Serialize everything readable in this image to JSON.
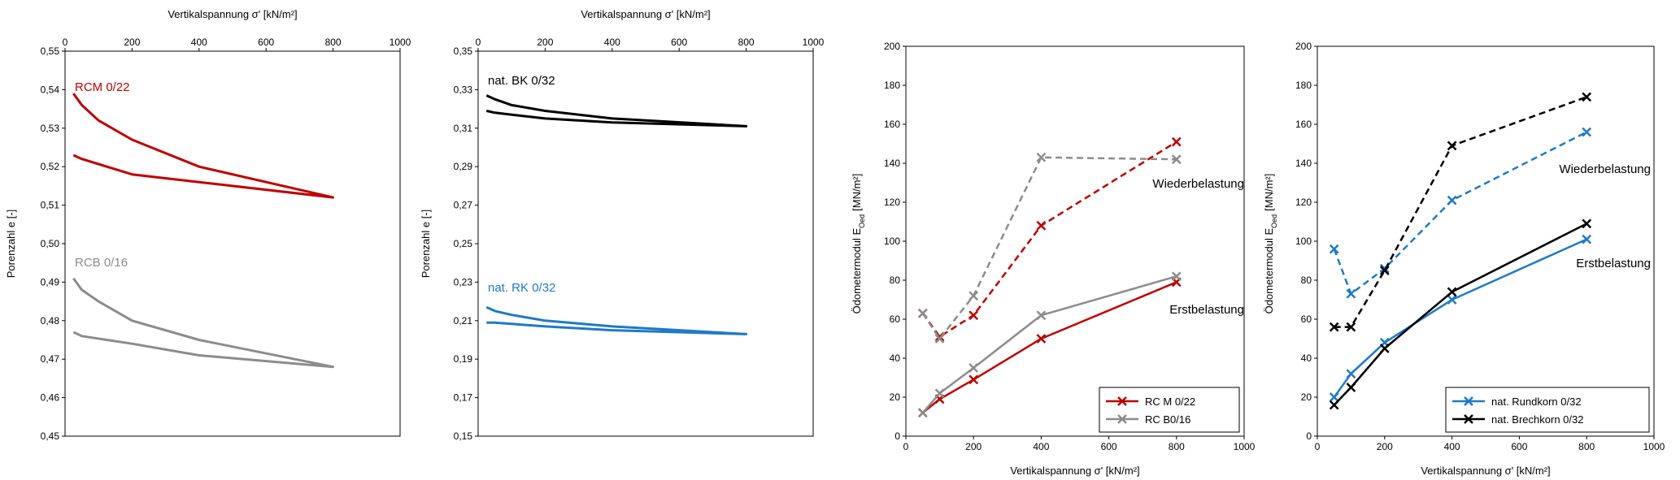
{
  "chart_data": [
    {
      "type": "line",
      "xlabel": "Vertikalspannung σ' [kN/m²]",
      "ylabel": "Porenzahl e [-]",
      "xlim": [
        0,
        1000
      ],
      "ylim": [
        0.45,
        0.55
      ],
      "x_ticks": [
        "0",
        "200",
        "400",
        "600",
        "800",
        "1000"
      ],
      "y_ticks": [
        "0,45",
        "0,46",
        "0,47",
        "0,48",
        "0,49",
        "0,50",
        "0,51",
        "0,52",
        "0,53",
        "0,54",
        "0,55"
      ],
      "x_axis_position": "top",
      "series": [
        {
          "name": "RCM 0/22",
          "color": "#c00000",
          "x": [
            25,
            50,
            100,
            200,
            400,
            800,
            400,
            200,
            50,
            25
          ],
          "y": [
            0.539,
            0.536,
            0.532,
            0.527,
            0.52,
            0.512,
            0.516,
            0.518,
            0.522,
            0.523
          ]
        },
        {
          "name": "RCB 0/16",
          "color": "#8c8c8c",
          "x": [
            25,
            50,
            100,
            200,
            400,
            800,
            400,
            200,
            50,
            25
          ],
          "y": [
            0.491,
            0.488,
            0.485,
            0.48,
            0.475,
            0.468,
            0.471,
            0.474,
            0.476,
            0.477
          ]
        }
      ],
      "annotations": [
        "RCM 0/22",
        "RCB 0/16"
      ]
    },
    {
      "type": "line",
      "xlabel": "Vertikalspannung σ' [kN/m²]",
      "ylabel": "Porenzahl e [-]",
      "xlim": [
        0,
        1000
      ],
      "ylim": [
        0.15,
        0.35
      ],
      "x_ticks": [
        "0",
        "200",
        "400",
        "600",
        "800",
        "1000"
      ],
      "y_ticks": [
        "0,15",
        "0,17",
        "0,19",
        "0,21",
        "0,23",
        "0,25",
        "0,27",
        "0,29",
        "0,31",
        "0,33",
        "0,35"
      ],
      "x_axis_position": "top",
      "series": [
        {
          "name": "nat. BK 0/32",
          "color": "#000000",
          "x": [
            25,
            50,
            100,
            200,
            400,
            800,
            400,
            200,
            50,
            25
          ],
          "y": [
            0.327,
            0.325,
            0.322,
            0.319,
            0.315,
            0.311,
            0.313,
            0.315,
            0.318,
            0.319
          ]
        },
        {
          "name": "nat. RK 0/32",
          "color": "#1f7ac8",
          "x": [
            25,
            50,
            100,
            200,
            400,
            800,
            400,
            200,
            50,
            25
          ],
          "y": [
            0.217,
            0.215,
            0.213,
            0.21,
            0.207,
            0.203,
            0.205,
            0.207,
            0.209,
            0.209
          ]
        }
      ],
      "annotations": [
        "nat. BK 0/32",
        "nat. RK 0/32"
      ]
    },
    {
      "type": "line",
      "xlabel": "Vertikalspannung σ' [kN/m²]",
      "ylabel": "Ödometermodul E",
      "ylabel_sub": "Oed",
      "ylabel_unit": "[MN/m²]",
      "xlim": [
        0,
        1000
      ],
      "ylim": [
        0,
        200
      ],
      "x_ticks": [
        "0",
        "200",
        "400",
        "600",
        "800",
        "1000"
      ],
      "y_ticks": [
        "0",
        "20",
        "40",
        "60",
        "80",
        "100",
        "120",
        "140",
        "160",
        "180",
        "200"
      ],
      "legend_position": "bottom-right",
      "series": [
        {
          "name": "RC M 0/22",
          "legend": true,
          "color": "#c00000",
          "dashed": false,
          "x": [
            50,
            100,
            200,
            400,
            800
          ],
          "y": [
            12,
            19,
            29,
            50,
            79
          ]
        },
        {
          "color": "#c00000",
          "dashed": true,
          "x": [
            50,
            100,
            200,
            400,
            800
          ],
          "y": [
            63,
            51,
            62,
            108,
            151
          ]
        },
        {
          "name": "RC B0/16",
          "legend": true,
          "color": "#8c8c8c",
          "dashed": false,
          "x": [
            50,
            100,
            200,
            400,
            800
          ],
          "y": [
            12,
            22,
            35,
            62,
            82
          ]
        },
        {
          "color": "#8c8c8c",
          "dashed": true,
          "x": [
            50,
            100,
            200,
            400,
            800
          ],
          "y": [
            63,
            50,
            72,
            143,
            142
          ]
        }
      ],
      "annotations": [
        "Wiederbelastung",
        "Erstbelastung"
      ]
    },
    {
      "type": "line",
      "xlabel": "Vertikalspannung σ' [kN/m²]",
      "ylabel": "Ödometermodul E",
      "ylabel_sub": "Oed",
      "ylabel_unit": "[MN/m²]",
      "xlim": [
        0,
        1000
      ],
      "ylim": [
        0,
        200
      ],
      "x_ticks": [
        "0",
        "200",
        "400",
        "600",
        "800",
        "1000"
      ],
      "y_ticks": [
        "0",
        "20",
        "40",
        "60",
        "80",
        "100",
        "120",
        "140",
        "160",
        "180",
        "200"
      ],
      "legend_position": "bottom-right",
      "series": [
        {
          "name": "nat. Rundkorn 0/32",
          "legend": true,
          "color": "#1f7ac8",
          "dashed": false,
          "x": [
            50,
            100,
            200,
            400,
            800
          ],
          "y": [
            20,
            32,
            48,
            70,
            101
          ]
        },
        {
          "color": "#1f7ac8",
          "dashed": true,
          "x": [
            50,
            100,
            200,
            400,
            800
          ],
          "y": [
            96,
            73,
            86,
            121,
            156
          ]
        },
        {
          "name": "nat. Brechkorn 0/32",
          "legend": true,
          "color": "#000000",
          "dashed": false,
          "x": [
            50,
            100,
            200,
            400,
            800
          ],
          "y": [
            16,
            25,
            45,
            74,
            109
          ]
        },
        {
          "color": "#000000",
          "dashed": true,
          "x": [
            50,
            100,
            200,
            400,
            800
          ],
          "y": [
            56,
            56,
            85,
            149,
            174
          ]
        }
      ],
      "annotations": [
        "Wiederbelastung",
        "Erstbelastung"
      ]
    }
  ]
}
